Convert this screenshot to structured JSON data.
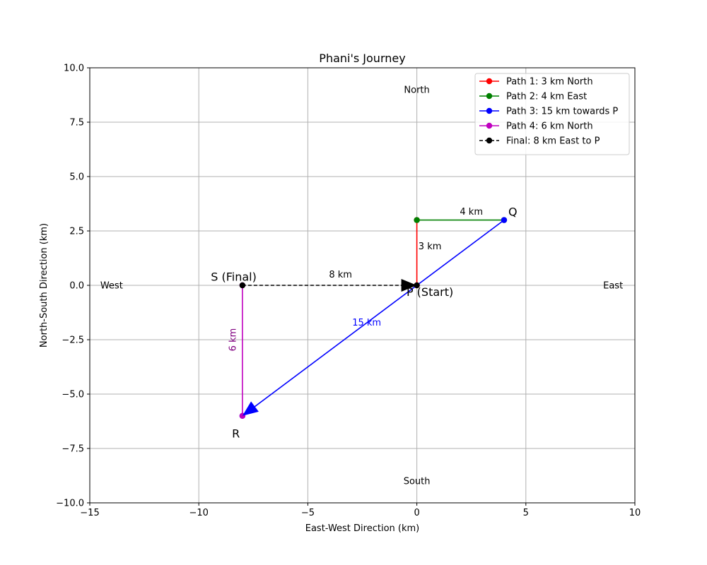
{
  "chart_data": {
    "type": "line",
    "title": "Phani's Journey",
    "xlabel": "East-West Direction (km)",
    "ylabel": "North-South Direction (km)",
    "xlim": [
      -15,
      10
    ],
    "ylim": [
      -10,
      10
    ],
    "xticks": [
      -15,
      -10,
      -5,
      0,
      5,
      10
    ],
    "yticks": [
      -10,
      -7.5,
      -5,
      -2.5,
      0,
      2.5,
      5,
      7.5,
      10
    ],
    "xtick_labels": [
      "−15",
      "−10",
      "−5",
      "0",
      "5",
      "10"
    ],
    "ytick_labels": [
      "−10.0",
      "−7.5",
      "−5.0",
      "−2.5",
      "0.0",
      "2.5",
      "5.0",
      "7.5",
      "10.0"
    ],
    "grid": true,
    "legend_position": "top-right",
    "series": [
      {
        "name": "Path 1: 3 km North",
        "color": "#ff0000",
        "dashed": false,
        "x": [
          0,
          0
        ],
        "y": [
          0,
          3
        ]
      },
      {
        "name": "Path 2: 4 km East",
        "color": "#008000",
        "dashed": false,
        "x": [
          0,
          4
        ],
        "y": [
          3,
          3
        ]
      },
      {
        "name": "Path 3: 15 km towards P",
        "color": "#0000ff",
        "dashed": false,
        "x": [
          4,
          -8
        ],
        "y": [
          3,
          -6
        ]
      },
      {
        "name": "Path 4: 6 km North",
        "color": "#bf00bf",
        "dashed": false,
        "x": [
          -8,
          -8
        ],
        "y": [
          -6,
          0
        ]
      },
      {
        "name": "Final: 8 km East to P",
        "color": "#000000",
        "dashed": true,
        "x": [
          -8,
          0
        ],
        "y": [
          0,
          0
        ]
      }
    ],
    "arrows": [
      {
        "color": "#0000ff",
        "x_from": 0,
        "y_from": 0,
        "x_to": -8,
        "y_to": -6
      },
      {
        "color": "#000000",
        "x_from": -8,
        "y_from": 0,
        "x_to": 0,
        "y_to": 0
      }
    ],
    "segment_labels": [
      {
        "text": "3 km",
        "x": 0.6,
        "y": 1.65,
        "color": "#000000",
        "rotate": false
      },
      {
        "text": "4 km",
        "x": 2.5,
        "y": 3.25,
        "color": "#000000",
        "rotate": false
      },
      {
        "text": "15 km",
        "x": -2.3,
        "y": -1.85,
        "color": "#0000ff",
        "rotate": false
      },
      {
        "text": "6 km",
        "x": -8.3,
        "y": -2.5,
        "color": "#800080",
        "rotate": true
      },
      {
        "text": "8 km",
        "x": -3.5,
        "y": 0.35,
        "color": "#000000",
        "rotate": false
      }
    ],
    "point_labels": [
      {
        "text": "P (Start)",
        "x": 0.6,
        "y": -0.3
      },
      {
        "text": "Q",
        "x": 4.4,
        "y": 3.4
      },
      {
        "text": "R",
        "x": -8.3,
        "y": -6.8
      },
      {
        "text": "S (Final)",
        "x": -8.4,
        "y": 0.4
      }
    ],
    "direction_labels": [
      {
        "text": "North",
        "x": 0,
        "y": 9
      },
      {
        "text": "South",
        "x": 0,
        "y": -9
      },
      {
        "text": "East",
        "x": 9,
        "y": 0
      },
      {
        "text": "West",
        "x": -14,
        "y": 0
      }
    ]
  }
}
